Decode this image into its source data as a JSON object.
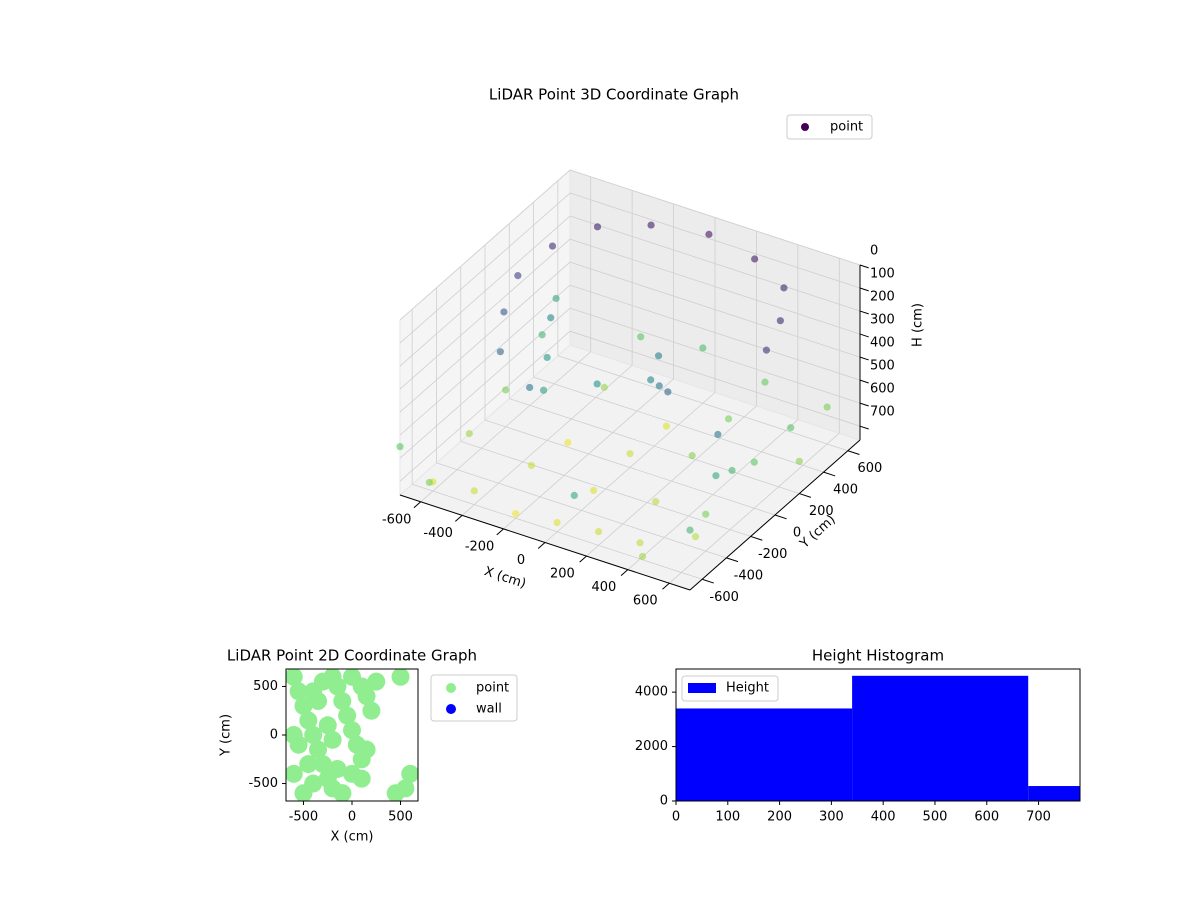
{
  "chart_data": [
    {
      "type": "scatter3d",
      "title": "LiDAR Point 3D Coordinate Graph",
      "xlabel": "X (cm)",
      "ylabel": "Y (cm)",
      "zlabel": "H (cm)",
      "xlim": [
        -700,
        700
      ],
      "ylim": [
        -700,
        700
      ],
      "zlim": [
        760,
        0
      ],
      "xticks": [
        -600,
        -400,
        -200,
        0,
        200,
        400,
        600
      ],
      "yticks": [
        -600,
        -400,
        -200,
        0,
        200,
        400,
        600
      ],
      "zticks": [
        0,
        100,
        200,
        300,
        400,
        500,
        600,
        700
      ],
      "colormap": "viridis",
      "grid": true,
      "legend": "upper right",
      "series": [
        {
          "name": "point",
          "color": "#440154",
          "x": [
            -600,
            -550,
            -450,
            -250,
            -550,
            -450,
            -250,
            0,
            250,
            450,
            550,
            600,
            -500,
            -400,
            -300,
            -100,
            100,
            200,
            300,
            50,
            600,
            620,
            600,
            580,
            610,
            -600,
            -400,
            -200,
            0,
            200,
            400,
            -600,
            -300,
            0,
            300,
            -600,
            -300,
            0,
            300,
            600,
            -600,
            -300,
            0,
            300,
            600,
            -300,
            0,
            300,
            600,
            -700,
            700,
            -650,
            700,
            -500,
            200,
            500
          ],
          "y": [
            100,
            -100,
            -300,
            -400,
            300,
            500,
            600,
            650,
            600,
            500,
            300,
            100,
            200,
            0,
            -200,
            -100,
            0,
            -100,
            -200,
            150,
            -300,
            -350,
            -400,
            -450,
            -200,
            -600,
            -600,
            -600,
            -600,
            -600,
            -600,
            -300,
            -300,
            -300,
            -300,
            0,
            0,
            0,
            0,
            0,
            300,
            300,
            300,
            300,
            300,
            600,
            600,
            600,
            600,
            -700,
            -700,
            500,
            200,
            -800,
            -800,
            -750
          ],
          "z": [
            150,
            200,
            250,
            300,
            100,
            80,
            60,
            50,
            60,
            80,
            100,
            120,
            350,
            400,
            420,
            380,
            350,
            300,
            250,
            330,
            300,
            450,
            600,
            680,
            500,
            720,
            700,
            740,
            720,
            700,
            690,
            650,
            700,
            720,
            680,
            600,
            740,
            700,
            620,
            560,
            500,
            640,
            720,
            600,
            550,
            560,
            520,
            580,
            600,
            550,
            500,
            450,
            620,
            600,
            450,
            650
          ]
        }
      ]
    },
    {
      "type": "scatter",
      "title": "LiDAR Point 2D Coordinate Graph",
      "xlabel": "X (cm)",
      "ylabel": "Y (cm)",
      "xlim": [
        -680,
        680
      ],
      "ylim": [
        -680,
        680
      ],
      "xticks": [
        -500,
        0,
        500
      ],
      "yticks": [
        -500,
        0,
        500
      ],
      "legend": "outside upper right",
      "series": [
        {
          "name": "point",
          "color": "#90ee90",
          "x": [
            -600,
            -550,
            -500,
            -450,
            -400,
            -350,
            -300,
            -250,
            -200,
            -150,
            -100,
            -50,
            0,
            50,
            100,
            150,
            200,
            -600,
            -500,
            -400,
            -300,
            -200,
            -100,
            0,
            100,
            -550,
            -450,
            -350,
            -250,
            -150,
            450,
            550,
            600,
            -100,
            100,
            250,
            500,
            -600,
            -400,
            -200,
            0,
            150
          ],
          "y": [
            600,
            450,
            300,
            150,
            0,
            -150,
            -300,
            -450,
            -550,
            500,
            350,
            200,
            50,
            -100,
            -250,
            400,
            250,
            -400,
            -600,
            -500,
            550,
            600,
            -600,
            600,
            500,
            -100,
            -300,
            350,
            100,
            -350,
            -600,
            -550,
            -400,
            -600,
            -450,
            550,
            600,
            0,
            450,
            -50,
            -400,
            -150
          ]
        },
        {
          "name": "wall",
          "color": "#0000ff",
          "x": [],
          "y": []
        }
      ]
    },
    {
      "type": "histogram",
      "title": "Height Histogram",
      "bins": [
        0,
        340,
        680,
        780
      ],
      "counts": [
        3400,
        4600,
        550
      ],
      "xlim": [
        0,
        780
      ],
      "ylim": [
        0,
        4850
      ],
      "xticks": [
        0,
        100,
        200,
        300,
        400,
        500,
        600,
        700
      ],
      "yticks": [
        0,
        2000,
        4000
      ],
      "series_name": "Height",
      "color": "#0000ff",
      "legend": "upper left"
    }
  ]
}
